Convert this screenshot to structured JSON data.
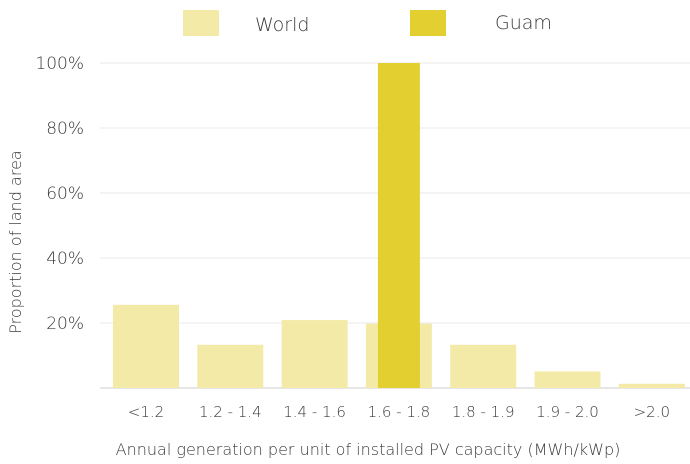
{
  "chart_data": {
    "type": "bar",
    "title": "",
    "xlabel": "Annual generation per unit of installed PV capacity (MWh/kWp)",
    "ylabel": "Proportion of land area",
    "categories": [
      "<1.2",
      "1.2 - 1.4",
      "1.4 - 1.6",
      "1.6 - 1.8",
      "1.8 - 1.9",
      "1.9 - 2.0",
      ">2.0"
    ],
    "series": [
      {
        "name": "World",
        "color": "#f4eaa8",
        "values": [
          25.6,
          13.3,
          20.9,
          19.8,
          13.3,
          5.1,
          1.3
        ]
      },
      {
        "name": "Guam",
        "color": "#e3cf30",
        "values": [
          0,
          0,
          0,
          100,
          0,
          0,
          0
        ]
      }
    ],
    "ylim": [
      0,
      100
    ],
    "yticks": [
      20,
      40,
      60,
      80,
      100
    ],
    "ytick_labels": [
      "20%",
      "40%",
      "60%",
      "80%",
      "100%"
    ],
    "grid": true,
    "legend": "top-center",
    "colors": {
      "gridline": "#e8e8e8",
      "axis": "#cccccc",
      "text": "#3a3a3a"
    }
  }
}
